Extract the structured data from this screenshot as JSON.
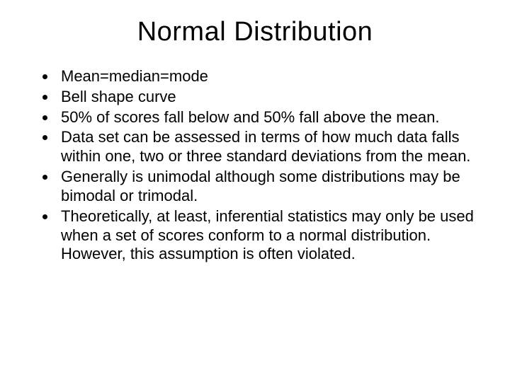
{
  "slide": {
    "title": "Normal Distribution",
    "bullets": [
      "Mean=median=mode",
      "Bell shape curve",
      "50% of scores fall below and 50% fall above the mean.",
      "Data set can be assessed in terms of how much data falls within one, two or three standard deviations from the mean.",
      "Generally is unimodal although some distributions may be bimodal or trimodal.",
      "Theoretically, at least, inferential statistics may only be used when a set of scores conform to a normal distribution. However, this assumption is often violated."
    ],
    "style": {
      "background_color": "#ffffff",
      "text_color": "#000000",
      "title_fontsize": 38,
      "title_fontweight": "normal",
      "body_fontsize": 22,
      "font_family": "Arial",
      "bullet_marker": "disc"
    }
  }
}
